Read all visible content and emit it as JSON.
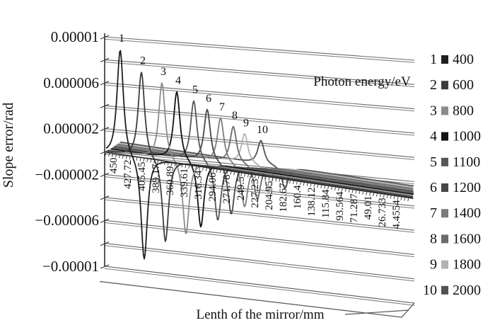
{
  "chart_data": {
    "type": "line",
    "projection": "3d",
    "title": "",
    "ylabel": "Slope error/rad",
    "xlabel": "Lenth of the mirror/mm",
    "series_axis_label": "Photon energy/eV",
    "ylim": [
      -1e-05,
      1e-05
    ],
    "y_tick_step": 2e-06,
    "grid": true,
    "y_tick_labels": [
      "0.00001",
      "0.000006",
      "0.000002",
      "−0.000002",
      "−0.000006",
      "−0.00001"
    ],
    "categories": [
      "450",
      "427.72",
      "405.45",
      "389.17",
      "360.89",
      "339.61",
      "316.34",
      "294.06",
      "271.78",
      "249.5",
      "227.23",
      "204.95",
      "182.67",
      "160.4",
      "138.12",
      "115.84",
      "93.564",
      "71.287",
      "49.01",
      "26.733",
      "4.4554"
    ],
    "legend": {
      "position": "right",
      "entries": [
        {
          "index": "1",
          "value": "400"
        },
        {
          "index": "2",
          "value": "600"
        },
        {
          "index": "3",
          "value": "800"
        },
        {
          "index": "4",
          "value": "1000"
        },
        {
          "index": "5",
          "value": "1100"
        },
        {
          "index": "6",
          "value": "1200"
        },
        {
          "index": "7",
          "value": "1400"
        },
        {
          "index": "8",
          "value": "1600"
        },
        {
          "index": "9",
          "value": "1800"
        },
        {
          "index": "10",
          "value": "2000"
        }
      ]
    },
    "series": [
      {
        "index": "1",
        "photon_energy_eV": 400,
        "peak_slope_error_rad": 9.2e-06,
        "dip_slope_error_rad": -8.9e-06,
        "peak_position_mm": 429.3,
        "color": "#1f1f1f"
      },
      {
        "index": "2",
        "photon_energy_eV": 600,
        "peak_slope_error_rad": 7.4e-06,
        "dip_slope_error_rad": -7.2e-06,
        "peak_position_mm": 400.5,
        "color": "#3c3c3c"
      },
      {
        "index": "3",
        "photon_energy_eV": 800,
        "peak_slope_error_rad": 6.6e-06,
        "dip_slope_error_rad": -6.4e-06,
        "peak_position_mm": 372.7,
        "color": "#8c8c8c"
      },
      {
        "index": "4",
        "photon_energy_eV": 1000,
        "peak_slope_error_rad": 5.9e-06,
        "dip_slope_error_rad": -5.7e-06,
        "peak_position_mm": 353.2,
        "color": "#121212"
      },
      {
        "index": "5",
        "photon_energy_eV": 1100,
        "peak_slope_error_rad": 5.2e-06,
        "dip_slope_error_rad": -5e-06,
        "peak_position_mm": 330.6,
        "color": "#575757"
      },
      {
        "index": "6",
        "photon_energy_eV": 1200,
        "peak_slope_error_rad": 4.5e-06,
        "dip_slope_error_rad": -4.4e-06,
        "peak_position_mm": 313.2,
        "color": "#474747"
      },
      {
        "index": "7",
        "photon_energy_eV": 1400,
        "peak_slope_error_rad": 3.8e-06,
        "dip_slope_error_rad": -3.7e-06,
        "peak_position_mm": 295.9,
        "color": "#7c7c7c"
      },
      {
        "index": "8",
        "photon_energy_eV": 1600,
        "peak_slope_error_rad": 3.1e-06,
        "dip_slope_error_rad": -3e-06,
        "peak_position_mm": 279.5,
        "color": "#6a6a6a"
      },
      {
        "index": "9",
        "photon_energy_eV": 1800,
        "peak_slope_error_rad": 2.5e-06,
        "dip_slope_error_rad": -2.4e-06,
        "peak_position_mm": 265.2,
        "color": "#b2b2b2"
      },
      {
        "index": "10",
        "photon_energy_eV": 2000,
        "peak_slope_error_rad": 2e-06,
        "dip_slope_error_rad": -1.9e-06,
        "peak_position_mm": 243.6,
        "color": "#525252"
      }
    ]
  }
}
